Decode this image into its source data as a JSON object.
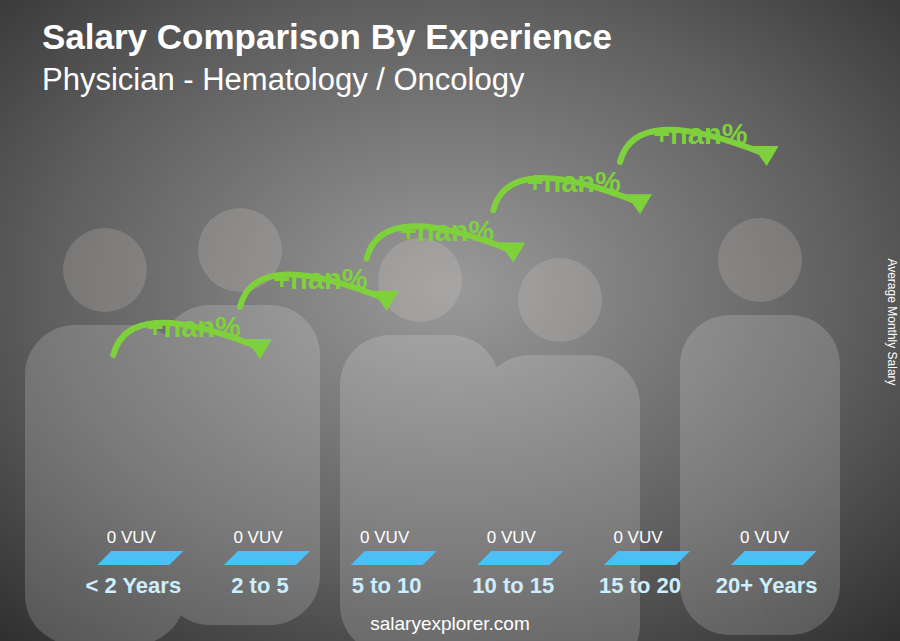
{
  "chart_data": {
    "type": "bar",
    "title": "Salary Comparison By Experience",
    "subtitle": "Physician - Hematology / Oncology",
    "y_label": "Average Monthly Salary",
    "categories": [
      "< 2 Years",
      "2 to 5",
      "5 to 10",
      "10 to 15",
      "15 to 20",
      "20+ Years"
    ],
    "values": [
      0,
      0,
      0,
      0,
      0,
      0
    ],
    "value_labels": [
      "0 VUV",
      "0 VUV",
      "0 VUV",
      "0 VUV",
      "0 VUV",
      "0 VUV"
    ],
    "data_labels": true,
    "annotations": [
      "+nan%",
      "+nan%",
      "+nan%",
      "+nan%",
      "+nan%"
    ],
    "source": "salaryexplorer.com",
    "color": "#1aa3e8",
    "grid": false,
    "tick_labels": "x"
  }
}
